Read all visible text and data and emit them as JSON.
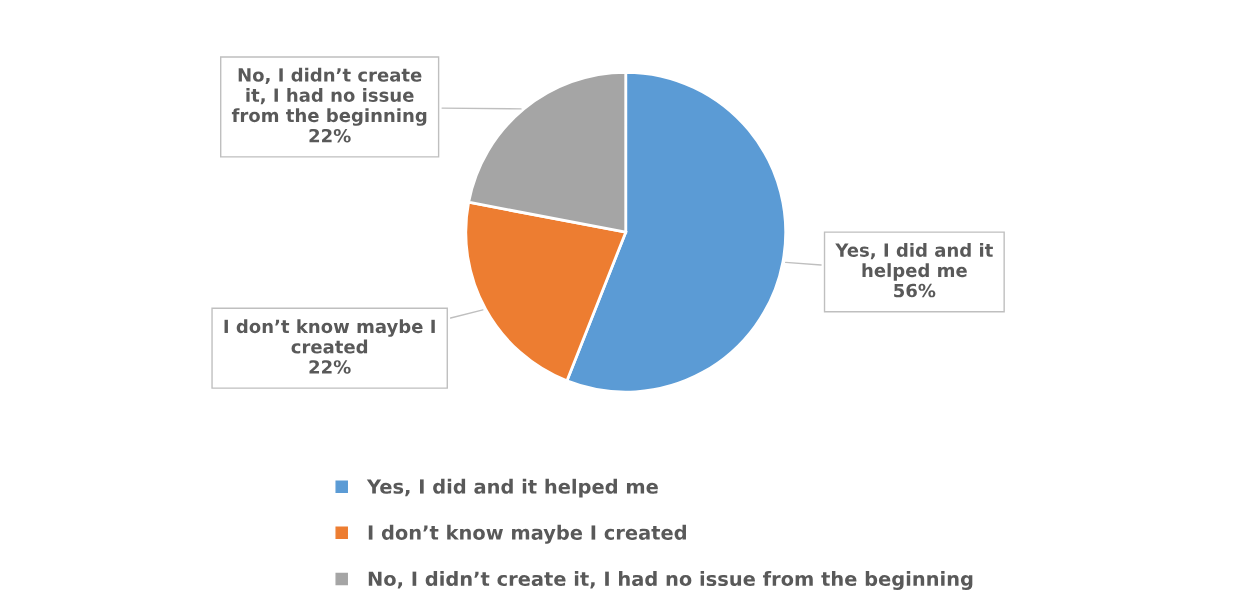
{
  "chart_data": {
    "type": "pie",
    "categories": [
      "Yes, I did and it helped me",
      "I don’t know maybe I created",
      "No, I didn’t create it, I had no issue from the beginning"
    ],
    "values": [
      56,
      22,
      22
    ],
    "colors": [
      "#5b9bd5",
      "#ed7d31",
      "#a5a5a5"
    ],
    "value_labels": [
      "56%",
      "22%",
      "22%"
    ],
    "legend": "bottom"
  }
}
